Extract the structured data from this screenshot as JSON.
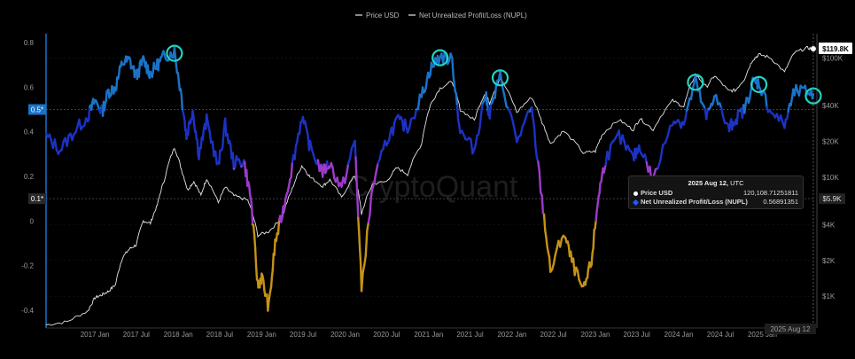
{
  "chart_data": {
    "type": "line",
    "watermark": "CryptoQuant",
    "legend": {
      "placement": "top-center",
      "items": [
        "Price USD",
        "Net Unrealized Profit/Loss (NUPL)"
      ]
    },
    "x_ticks": [
      "2017 Jan",
      "2017 Jul",
      "2018 Jan",
      "2018 Jul",
      "2019 Jan",
      "2019 Jul",
      "2020 Jan",
      "2020 Jul",
      "2021 Jan",
      "2021 Jul",
      "2022 Jan",
      "2022 Jul",
      "2023 Jan",
      "2023 Jul",
      "2024 Jan",
      "2024 Jul",
      "2025 Jan"
    ],
    "left_axis": {
      "ticks": [
        "0.8",
        "0.6",
        "0.4",
        "0.2",
        "0",
        "-0.2",
        "-0.4"
      ],
      "range": [
        -0.44,
        0.84
      ],
      "markers": [
        "0.5*",
        "0.1*"
      ]
    },
    "right_axis": {
      "scale": "log",
      "ticks": [
        "$100K",
        "$40K",
        "$20K",
        "$10K",
        "$4K",
        "$2K",
        "$1K"
      ],
      "current_label": "$119.8K",
      "marker_label": "$5.9K"
    },
    "x_cursor_label": "2025 Aug 12",
    "series": [
      {
        "name": "Price USD",
        "color": "#e6e6e6",
        "values_usd": [
          [
            "2016-06-01",
            575
          ],
          [
            "2016-09-01",
            610
          ],
          [
            "2016-12-01",
            750
          ],
          [
            "2017-01-01",
            970
          ],
          [
            "2017-02-01",
            1030
          ],
          [
            "2017-03-01",
            1100
          ],
          [
            "2017-04-01",
            1250
          ],
          [
            "2017-05-01",
            2100
          ],
          [
            "2017-06-01",
            2500
          ],
          [
            "2017-07-01",
            2700
          ],
          [
            "2017-08-01",
            4300
          ],
          [
            "2017-09-01",
            4100
          ],
          [
            "2017-10-01",
            5800
          ],
          [
            "2017-11-01",
            9500
          ],
          [
            "2017-12-15",
            17800
          ],
          [
            "2018-01-15",
            11500
          ],
          [
            "2018-02-10",
            7800
          ],
          [
            "2018-03-10",
            9200
          ],
          [
            "2018-04-10",
            7000
          ],
          [
            "2018-05-05",
            9700
          ],
          [
            "2018-06-25",
            6100
          ],
          [
            "2018-07-25",
            8200
          ],
          [
            "2018-09-01",
            7000
          ],
          [
            "2018-11-01",
            6400
          ],
          [
            "2018-12-15",
            3250
          ],
          [
            "2019-02-01",
            3500
          ],
          [
            "2019-04-01",
            4500
          ],
          [
            "2019-05-15",
            8000
          ],
          [
            "2019-06-26",
            12500
          ],
          [
            "2019-08-01",
            10000
          ],
          [
            "2019-09-25",
            8400
          ],
          [
            "2019-10-26",
            9500
          ],
          [
            "2019-12-17",
            6700
          ],
          [
            "2020-02-13",
            10300
          ],
          [
            "2020-03-13",
            4900
          ],
          [
            "2020-05-01",
            8800
          ],
          [
            "2020-07-01",
            9200
          ],
          [
            "2020-08-15",
            12000
          ],
          [
            "2020-10-01",
            10600
          ],
          [
            "2020-12-01",
            19000
          ],
          [
            "2021-01-08",
            40000
          ],
          [
            "2021-02-20",
            56000
          ],
          [
            "2021-04-14",
            63500
          ],
          [
            "2021-05-19",
            37000
          ],
          [
            "2021-07-20",
            30000
          ],
          [
            "2021-09-05",
            51000
          ],
          [
            "2021-09-25",
            42000
          ],
          [
            "2021-11-10",
            67500
          ],
          [
            "2022-01-22",
            35000
          ],
          [
            "2022-03-28",
            47000
          ],
          [
            "2022-05-12",
            29000
          ],
          [
            "2022-06-18",
            19000
          ],
          [
            "2022-08-14",
            24400
          ],
          [
            "2022-11-09",
            16000
          ],
          [
            "2023-01-01",
            16500
          ],
          [
            "2023-02-01",
            23000
          ],
          [
            "2023-04-14",
            30300
          ],
          [
            "2023-06-15",
            25000
          ],
          [
            "2023-07-15",
            31000
          ],
          [
            "2023-09-11",
            25000
          ],
          [
            "2023-12-05",
            44000
          ],
          [
            "2024-01-23",
            39000
          ],
          [
            "2024-03-14",
            73000
          ],
          [
            "2024-05-01",
            57000
          ],
          [
            "2024-06-05",
            71000
          ],
          [
            "2024-08-05",
            53000
          ],
          [
            "2024-09-07",
            54000
          ],
          [
            "2024-10-15",
            67000
          ],
          [
            "2024-11-20",
            97000
          ],
          [
            "2024-12-17",
            107000
          ],
          [
            "2025-02-01",
            102000
          ],
          [
            "2025-04-08",
            76000
          ],
          [
            "2025-05-22",
            111000
          ],
          [
            "2025-07-14",
            122000
          ],
          [
            "2025-08-12",
            120108.71251811
          ]
        ]
      },
      {
        "name": "Net Unrealized Profit/Loss (NUPL)",
        "color": "#1e5aff",
        "values": [
          [
            "2016-06-01",
            0.38
          ],
          [
            "2016-08-01",
            0.32
          ],
          [
            "2016-10-01",
            0.4
          ],
          [
            "2016-12-01",
            0.47
          ],
          [
            "2017-01-01",
            0.54
          ],
          [
            "2017-02-01",
            0.49
          ],
          [
            "2017-03-01",
            0.58
          ],
          [
            "2017-04-01",
            0.6
          ],
          [
            "2017-05-01",
            0.71
          ],
          [
            "2017-06-01",
            0.72
          ],
          [
            "2017-07-01",
            0.65
          ],
          [
            "2017-08-01",
            0.72
          ],
          [
            "2017-09-01",
            0.66
          ],
          [
            "2017-10-01",
            0.7
          ],
          [
            "2017-11-01",
            0.74
          ],
          [
            "2017-12-15",
            0.76
          ],
          [
            "2018-01-15",
            0.56
          ],
          [
            "2018-02-06",
            0.38
          ],
          [
            "2018-03-05",
            0.5
          ],
          [
            "2018-04-01",
            0.3
          ],
          [
            "2018-05-05",
            0.45
          ],
          [
            "2018-06-25",
            0.24
          ],
          [
            "2018-07-25",
            0.43
          ],
          [
            "2018-09-01",
            0.26
          ],
          [
            "2018-10-15",
            0.27
          ],
          [
            "2018-11-15",
            0.1
          ],
          [
            "2018-12-15",
            -0.29
          ],
          [
            "2019-01-01",
            -0.25
          ],
          [
            "2019-02-01",
            -0.39
          ],
          [
            "2019-03-01",
            -0.1
          ],
          [
            "2019-04-05",
            0.05
          ],
          [
            "2019-05-15",
            0.25
          ],
          [
            "2019-06-26",
            0.47
          ],
          [
            "2019-08-01",
            0.33
          ],
          [
            "2019-09-25",
            0.22
          ],
          [
            "2019-10-26",
            0.26
          ],
          [
            "2019-12-17",
            0.14
          ],
          [
            "2020-02-13",
            0.36
          ],
          [
            "2020-03-13",
            -0.3
          ],
          [
            "2020-05-01",
            0.16
          ],
          [
            "2020-07-01",
            0.36
          ],
          [
            "2020-08-15",
            0.45
          ],
          [
            "2020-10-01",
            0.42
          ],
          [
            "2020-12-01",
            0.56
          ],
          [
            "2021-01-08",
            0.68
          ],
          [
            "2021-02-20",
            0.74
          ],
          [
            "2021-04-14",
            0.72
          ],
          [
            "2021-05-19",
            0.4
          ],
          [
            "2021-07-20",
            0.32
          ],
          [
            "2021-09-05",
            0.57
          ],
          [
            "2021-09-25",
            0.48
          ],
          [
            "2021-11-10",
            0.65
          ],
          [
            "2022-01-22",
            0.36
          ],
          [
            "2022-03-28",
            0.5
          ],
          [
            "2022-05-12",
            0.1
          ],
          [
            "2022-06-18",
            -0.23
          ],
          [
            "2022-08-14",
            -0.05
          ],
          [
            "2022-09-20",
            -0.18
          ],
          [
            "2022-11-09",
            -0.32
          ],
          [
            "2022-12-15",
            -0.18
          ],
          [
            "2023-01-15",
            0.12
          ],
          [
            "2023-02-15",
            0.28
          ],
          [
            "2023-04-14",
            0.38
          ],
          [
            "2023-06-15",
            0.28
          ],
          [
            "2023-07-15",
            0.34
          ],
          [
            "2023-09-11",
            0.18
          ],
          [
            "2023-12-05",
            0.46
          ],
          [
            "2024-01-23",
            0.44
          ],
          [
            "2024-03-14",
            0.63
          ],
          [
            "2024-05-01",
            0.46
          ],
          [
            "2024-06-05",
            0.57
          ],
          [
            "2024-08-05",
            0.41
          ],
          [
            "2024-09-07",
            0.46
          ],
          [
            "2024-10-15",
            0.5
          ],
          [
            "2024-11-20",
            0.62
          ],
          [
            "2024-12-17",
            0.62
          ],
          [
            "2025-02-01",
            0.5
          ],
          [
            "2025-04-08",
            0.43
          ],
          [
            "2025-05-22",
            0.58
          ],
          [
            "2025-07-14",
            0.58
          ],
          [
            "2025-08-12",
            0.56891351
          ]
        ]
      }
    ],
    "nupl_color_bands": [
      {
        "min": 0.5,
        "color": "#1a73c8"
      },
      {
        "min": 0.25,
        "max": 0.5,
        "color": "#1c32c4"
      },
      {
        "min": 0.0,
        "max": 0.25,
        "color": "#9c3bc9"
      },
      {
        "max": 0.0,
        "color": "#c59316"
      }
    ],
    "highlight_circles": [
      "2017-12-15",
      "2021-02-20",
      "2021-11-10",
      "2024-03-14",
      "2024-12-17",
      "2025-08-12"
    ],
    "tooltip": {
      "date": "2025 Aug 12,",
      "tz": "UTC",
      "rows": [
        {
          "label": "Price USD",
          "value": "120,108.71251811",
          "color": "#ffffff"
        },
        {
          "label": "Net Unrealized Profit/Loss (NUPL)",
          "value": "0.56891351",
          "color": "#1e5aff"
        }
      ]
    }
  }
}
